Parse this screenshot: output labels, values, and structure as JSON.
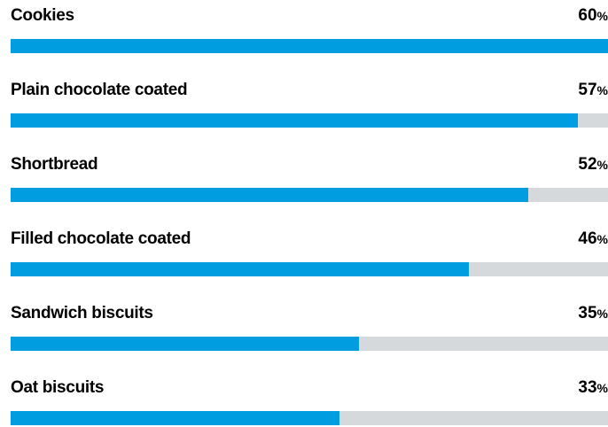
{
  "colors": {
    "bar_fill": "#009ee0",
    "bar_track": "#d5d9dc",
    "text": "#000000"
  },
  "chart_data": {
    "type": "bar",
    "orientation": "horizontal",
    "categories": [
      "Cookies",
      "Plain chocolate coated",
      "Shortbread",
      "Filled chocolate coated",
      "Sandwich biscuits",
      "Oat biscuits"
    ],
    "values": [
      60,
      57,
      52,
      46,
      35,
      33
    ],
    "value_labels": [
      "60",
      "57",
      "52",
      "46",
      "35",
      "33"
    ],
    "unit": "%",
    "xlim": [
      0,
      60
    ],
    "grid": false,
    "legend": "none"
  }
}
